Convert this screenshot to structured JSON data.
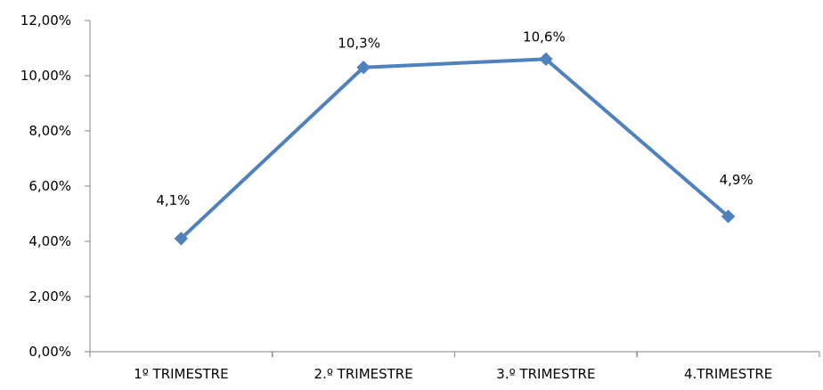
{
  "chart_data": {
    "type": "line",
    "title": "",
    "xlabel": "",
    "ylabel": "",
    "categories": [
      "1º TRIMESTRE",
      "2.º TRIMESTRE",
      "3.º TRIMESTRE",
      "4.TRIMESTRE"
    ],
    "series": [
      {
        "values": [
          4.1,
          10.3,
          10.6,
          4.9
        ],
        "data_labels": [
          "4,1%",
          "10,3%",
          "10,6%",
          "4,9%"
        ],
        "color": "#4F81BD",
        "marker": "diamond"
      }
    ],
    "ylim": [
      0,
      12
    ],
    "y_ticks": [
      0,
      2,
      4,
      6,
      8,
      10,
      12
    ],
    "y_tick_labels": [
      "0,00%",
      "2,00%",
      "4,00%",
      "6,00%",
      "8,00%",
      "10,00%",
      "12,00%"
    ],
    "grid": false,
    "legend": "none"
  }
}
